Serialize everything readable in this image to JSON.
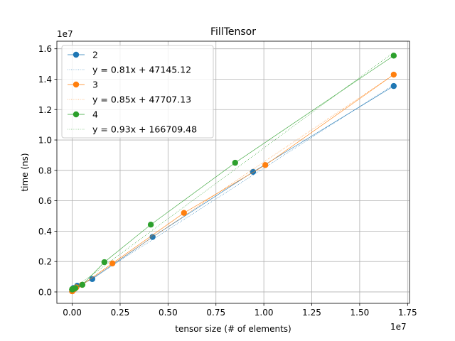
{
  "chart_data": {
    "type": "line",
    "title": "FillTensor",
    "xlabel": "tensor size (# of elements)",
    "ylabel": "time (ns)",
    "x_offset_label": "1e7",
    "y_offset_label": "1e7",
    "xlim": [
      -800000,
      17600000
    ],
    "ylim": [
      -750000,
      16500000
    ],
    "xticks": [
      0,
      2500000,
      5000000,
      7500000,
      10000000,
      12500000,
      15000000,
      17500000
    ],
    "xtick_labels": [
      "0.00",
      "0.25",
      "0.50",
      "0.75",
      "1.00",
      "1.25",
      "1.50",
      "1.75"
    ],
    "yticks": [
      0,
      2000000,
      4000000,
      6000000,
      8000000,
      10000000,
      12000000,
      14000000,
      16000000
    ],
    "ytick_labels": [
      "0.0",
      "0.2",
      "0.4",
      "0.6",
      "0.8",
      "1.0",
      "1.2",
      "1.4",
      "1.6"
    ],
    "grid": true,
    "legend_position": "top-left",
    "series": [
      {
        "name": "2",
        "color": "#1f77b4",
        "x": [
          1,
          4,
          16,
          64,
          256,
          1024,
          4096,
          16384,
          65536,
          262144,
          1048576,
          4194304,
          9437184,
          16777216
        ],
        "y": [
          47000,
          47000,
          48000,
          50000,
          55000,
          80000,
          110000,
          190000,
          260000,
          410000,
          850000,
          3620000,
          7900000,
          13550000
        ],
        "fit_label": "y = 0.81x + 47145.12",
        "fit_slope": 0.81,
        "fit_intercept": 47145.12
      },
      {
        "name": "3",
        "color": "#ff7f0e",
        "x": [
          1,
          8,
          27,
          64,
          125,
          216,
          1000,
          8000,
          27000,
          64000,
          125000,
          216000,
          512000,
          2097152,
          5832000,
          10077696,
          16777216
        ],
        "y": [
          48000,
          48000,
          49000,
          50000,
          52000,
          55000,
          60000,
          80000,
          110000,
          140000,
          200000,
          300000,
          470000,
          1880000,
          5200000,
          8350000,
          14300000
        ],
        "fit_label": "y = 0.85x + 47707.13",
        "fit_slope": 0.85,
        "fit_intercept": 47707.13
      },
      {
        "name": "4",
        "color": "#2ca02c",
        "x": [
          1,
          16,
          81,
          256,
          625,
          1296,
          2401,
          4096,
          6561,
          10000,
          50625,
          160000,
          531441,
          1679616,
          4100625,
          8503056,
          16777216
        ],
        "y": [
          167000,
          167000,
          168000,
          168000,
          170000,
          172000,
          175000,
          178000,
          180000,
          185000,
          190000,
          250000,
          470000,
          1960000,
          4430000,
          8500000,
          15550000
        ],
        "fit_label": "y = 0.93x + 166709.48",
        "fit_slope": 0.93,
        "fit_intercept": 166709.48
      }
    ]
  }
}
